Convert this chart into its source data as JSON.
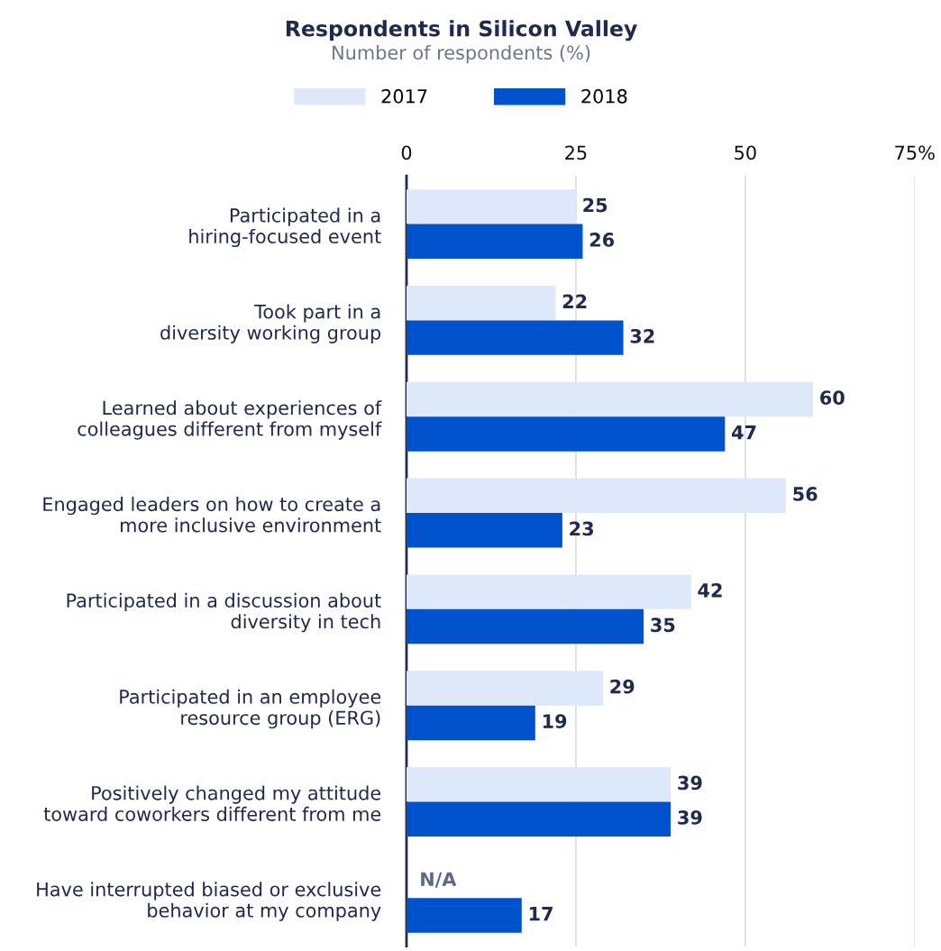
{
  "chart_data": {
    "type": "bar",
    "orientation": "horizontal",
    "title": "Respondents in Silicon Valley",
    "subtitle": "Number of respondents (%)",
    "categories": [
      "Participated in a\nhiring-focused event",
      "Took part in a\ndiversity working group",
      "Learned about experiences of\ncolleagues different from myself",
      "Engaged leaders on how to create a\nmore inclusive environment",
      "Participated in a discussion about\ndiversity in tech",
      "Participated in an employee\nresource group (ERG)",
      "Positively changed my attitude\ntoward coworkers different from me",
      "Have interrupted biased or exclusive\nbehavior at my company"
    ],
    "series": [
      {
        "name": "2017",
        "color": "#dde8fb",
        "values": [
          25,
          22,
          60,
          56,
          42,
          29,
          39,
          null
        ],
        "value_labels": [
          "25",
          "22",
          "60",
          "56",
          "42",
          "29",
          "39",
          "N/A"
        ]
      },
      {
        "name": "2018",
        "color": "#0052cc",
        "values": [
          26,
          32,
          47,
          23,
          35,
          19,
          39,
          17
        ],
        "value_labels": [
          "26",
          "32",
          "47",
          "23",
          "35",
          "19",
          "39",
          "17"
        ]
      }
    ],
    "xlim": [
      0,
      75
    ],
    "xticks": [
      0,
      25,
      50,
      {
        "value": 75,
        "label": "75%"
      }
    ],
    "grid": "x",
    "legend": "top"
  }
}
